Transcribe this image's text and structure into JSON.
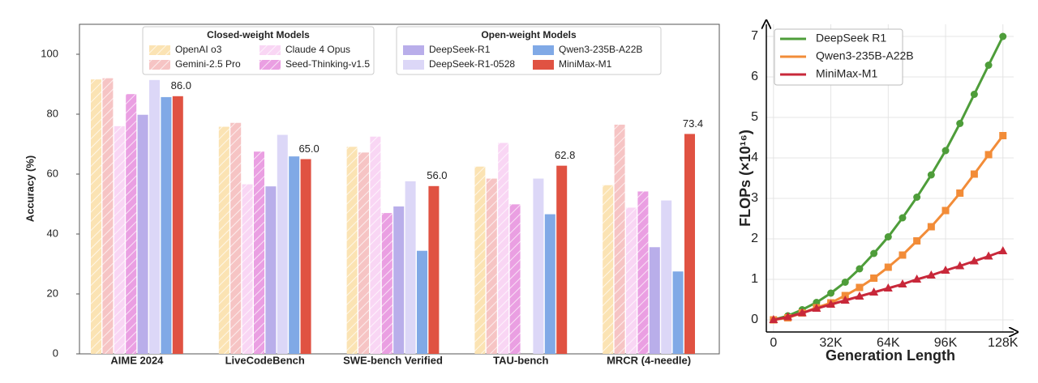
{
  "chart_data": [
    {
      "type": "bar",
      "ylabel": "Accuracy (%)",
      "categories": [
        "AIME 2024",
        "LiveCodeBench",
        "SWE-bench Verified",
        "TAU-bench",
        "MRCR (4-needle)"
      ],
      "ylim": [
        0,
        110
      ],
      "yticks": [
        0,
        20,
        40,
        60,
        80,
        100
      ],
      "grid": false,
      "legend_groups": [
        {
          "title": "Closed-weight Models",
          "series": [
            0,
            1,
            2,
            3
          ]
        },
        {
          "title": "Open-weight Models",
          "series": [
            4,
            5,
            6,
            7
          ]
        }
      ],
      "series": [
        {
          "name": "OpenAI o3",
          "color": "#fbe3b3",
          "hatch": true,
          "values": [
            91.6,
            75.8,
            69.1,
            62.5,
            56.3
          ]
        },
        {
          "name": "Gemini-2.5 Pro",
          "color": "#f6c4c4",
          "hatch": true,
          "values": [
            92.0,
            77.1,
            67.2,
            58.5,
            76.5
          ]
        },
        {
          "name": "Claude 4 Opus",
          "color": "#f9d6f4",
          "hatch": true,
          "values": [
            76.0,
            56.6,
            72.5,
            70.4,
            48.8
          ]
        },
        {
          "name": "Seed-Thinking-v1.5",
          "color": "#ea9fe2",
          "hatch": true,
          "values": [
            86.7,
            67.5,
            47.0,
            49.9,
            54.2
          ]
        },
        {
          "name": "DeepSeek-R1",
          "color": "#b9aeea",
          "hatch": false,
          "values": [
            79.8,
            55.9,
            49.2,
            null,
            35.6
          ]
        },
        {
          "name": "DeepSeek-R1-0528",
          "color": "#dcd7f7",
          "hatch": false,
          "values": [
            91.4,
            73.1,
            57.6,
            58.5,
            51.2
          ]
        },
        {
          "name": "Qwen3-235B-A22B",
          "color": "#80a9e6",
          "hatch": false,
          "values": [
            85.7,
            65.9,
            34.4,
            46.6,
            27.5
          ]
        },
        {
          "name": "MiniMax-M1",
          "color": "#e05242",
          "hatch": false,
          "values": [
            86.0,
            65.0,
            56.0,
            62.8,
            73.4
          ],
          "value_labels": [
            "86.0",
            "65.0",
            "56.0",
            "62.8",
            "73.4"
          ]
        }
      ]
    },
    {
      "type": "line",
      "xlabel": "Generation Length",
      "ylabel": "FLOPs (×10¹⁶)",
      "x": [
        0,
        8000,
        16000,
        24000,
        32000,
        40000,
        48000,
        56000,
        64000,
        72000,
        80000,
        88000,
        96000,
        104000,
        112000,
        120000,
        128000
      ],
      "xlim": [
        -4000,
        134000
      ],
      "ylim": [
        -0.3,
        7.3
      ],
      "grid": true,
      "legend": "upper left",
      "xticks": [
        0,
        {
          "value": 32000,
          "label": "32K"
        },
        {
          "value": 64000,
          "label": "64K"
        },
        {
          "value": 96000,
          "label": "96K"
        },
        {
          "value": 128000,
          "label": "128K"
        }
      ],
      "yticks": [
        0,
        1,
        2,
        3,
        4,
        5,
        6,
        7
      ],
      "series": [
        {
          "name": "DeepSeek R1",
          "color": "#4e9d3a",
          "marker": "circle",
          "values": [
            0,
            0.1,
            0.25,
            0.43,
            0.66,
            0.93,
            1.26,
            1.64,
            2.05,
            2.52,
            3.03,
            3.58,
            4.18,
            4.85,
            5.57,
            6.29,
            7.0
          ]
        },
        {
          "name": "Qwen3-235B-A22B",
          "color": "#f28c38",
          "marker": "square",
          "values": [
            0,
            0.05,
            0.17,
            0.3,
            0.42,
            0.6,
            0.8,
            1.03,
            1.3,
            1.6,
            1.95,
            2.3,
            2.7,
            3.13,
            3.6,
            4.08,
            4.55
          ]
        },
        {
          "name": "MiniMax-M1",
          "color": "#c8283a",
          "marker": "triangle",
          "values": [
            0,
            0.07,
            0.17,
            0.28,
            0.38,
            0.48,
            0.58,
            0.68,
            0.78,
            0.88,
            1.0,
            1.1,
            1.22,
            1.33,
            1.45,
            1.57,
            1.7
          ]
        }
      ]
    }
  ]
}
